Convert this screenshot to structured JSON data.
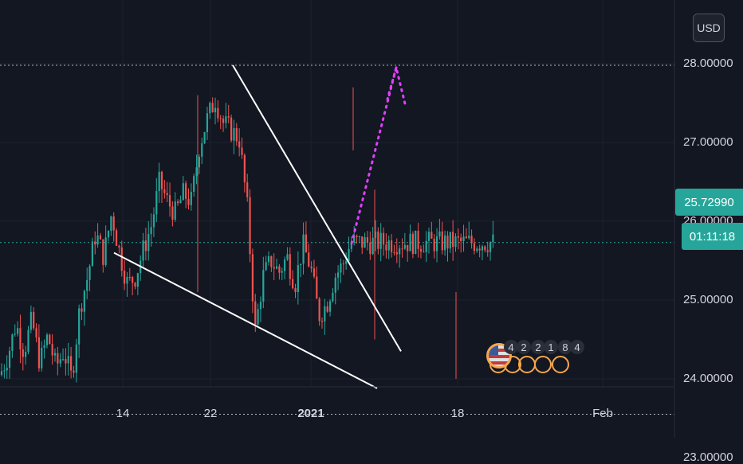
{
  "currency_button": "USD",
  "last_price_label": "25.72990",
  "countdown_label": "01:11:18",
  "event_counts": [
    "4",
    "2",
    "2",
    "1",
    "8",
    "4"
  ],
  "chart_data": {
    "type": "candlestick",
    "ylim": [
      22.75,
      28.35
    ],
    "y_ticks": [
      {
        "value": 23,
        "label": "23.00000"
      },
      {
        "value": 24,
        "label": "24.00000"
      },
      {
        "value": 25,
        "label": "25.00000"
      },
      {
        "value": 26,
        "label": "26.00000"
      },
      {
        "value": 27,
        "label": "27.00000"
      },
      {
        "value": 28,
        "label": "28.00000"
      }
    ],
    "x_ticks": [
      {
        "label": "14",
        "bold": false
      },
      {
        "label": "22",
        "bold": false
      },
      {
        "label": "2021",
        "bold": true
      },
      {
        "label": "18",
        "bold": false
      },
      {
        "label": "Feb",
        "bold": false
      }
    ],
    "last_price": 25.7299,
    "horizontal_levels": [
      27.98,
      23.55
    ],
    "colors": {
      "up": "#26a69a",
      "down": "#ef5350",
      "trendline": "#ffffff",
      "projection": "#e040fb",
      "grid": "#1e222d"
    },
    "close_path": [
      {
        "d": 0,
        "v": 24.05
      },
      {
        "d": 1,
        "v": 24.3
      },
      {
        "d": 2,
        "v": 24.7
      },
      {
        "d": 3,
        "v": 24.35
      },
      {
        "d": 4,
        "v": 24.75
      },
      {
        "d": 5,
        "v": 24.2
      },
      {
        "d": 6,
        "v": 24.55
      },
      {
        "d": 7,
        "v": 24.15
      },
      {
        "d": 8,
        "v": 24.35
      },
      {
        "d": 9,
        "v": 24.0
      },
      {
        "d": 10,
        "v": 24.9
      },
      {
        "d": 11,
        "v": 25.3
      },
      {
        "d": 12,
        "v": 25.85
      },
      {
        "d": 13,
        "v": 25.55
      },
      {
        "d": 14,
        "v": 26.1
      },
      {
        "d": 15,
        "v": 25.6
      },
      {
        "d": 16,
        "v": 25.2
      },
      {
        "d": 17,
        "v": 25.3
      },
      {
        "d": 18,
        "v": 25.65
      },
      {
        "d": 19,
        "v": 25.95
      },
      {
        "d": 20,
        "v": 26.5
      },
      {
        "d": 21,
        "v": 26.25
      },
      {
        "d": 22,
        "v": 26.1
      },
      {
        "d": 23,
        "v": 26.35
      },
      {
        "d": 24,
        "v": 26.25
      },
      {
        "d": 25,
        "v": 26.95
      },
      {
        "d": 26,
        "v": 27.3
      },
      {
        "d": 27,
        "v": 27.55
      },
      {
        "d": 28,
        "v": 27.25
      },
      {
        "d": 29,
        "v": 27.15
      },
      {
        "d": 30,
        "v": 27.05
      },
      {
        "d": 31,
        "v": 26.2
      },
      {
        "d": 32,
        "v": 24.6
      },
      {
        "d": 33,
        "v": 25.3
      },
      {
        "d": 34,
        "v": 25.5
      },
      {
        "d": 35,
        "v": 25.35
      },
      {
        "d": 36,
        "v": 25.55
      },
      {
        "d": 37,
        "v": 25.2
      },
      {
        "d": 38,
        "v": 25.7
      },
      {
        "d": 39,
        "v": 25.4
      },
      {
        "d": 40,
        "v": 24.8
      },
      {
        "d": 41,
        "v": 24.95
      },
      {
        "d": 42,
        "v": 25.3
      },
      {
        "d": 43,
        "v": 25.45
      },
      {
        "d": 44,
        "v": 25.73
      }
    ],
    "trendlines": [
      {
        "from": {
          "d": 14.3,
          "v": 25.6
        },
        "to": {
          "d": 47.3,
          "v": 23.88
        }
      },
      {
        "from": {
          "d": 29.2,
          "v": 27.98
        },
        "to": {
          "d": 50.3,
          "v": 24.35
        }
      }
    ],
    "projection": [
      {
        "d": 44.1,
        "v": 25.72
      },
      {
        "d": 49.7,
        "v": 27.95
      },
      {
        "d": 50.9,
        "v": 27.45
      }
    ]
  }
}
